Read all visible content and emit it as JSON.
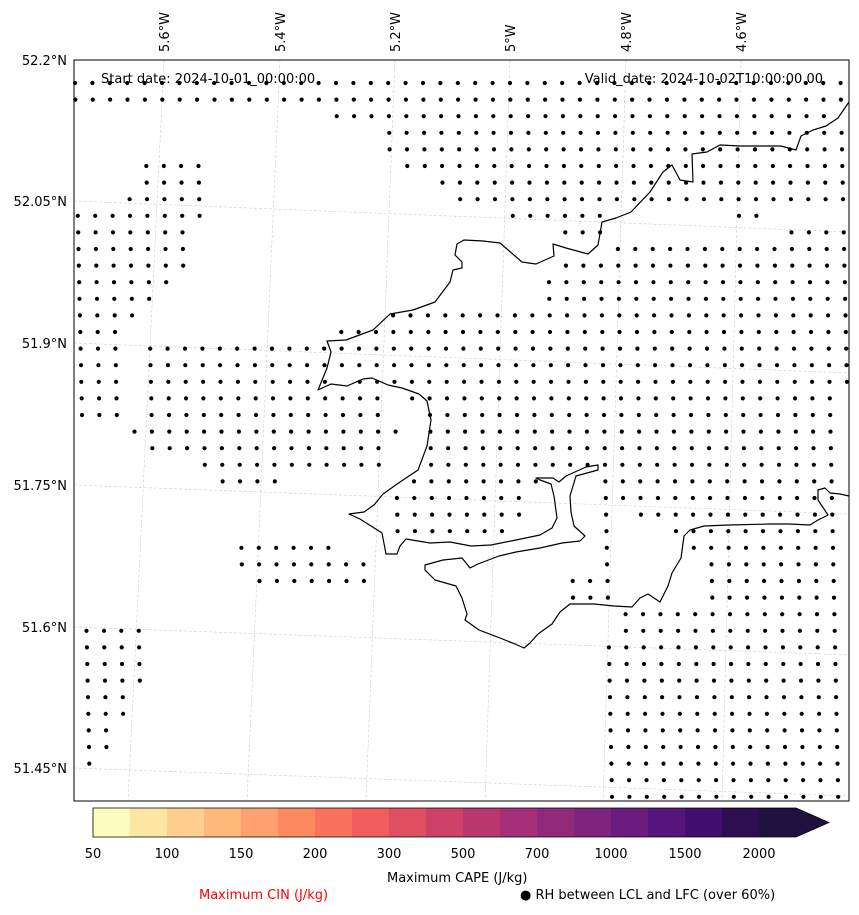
{
  "header": {
    "start_date": "Start date: 2024-10-01_00:00:00",
    "valid_date": "Valid_date: 2024-10-02T10:00:00.00"
  },
  "map": {
    "extent": {
      "lon": [
        -5.75,
        -4.43
      ],
      "lat": [
        51.42,
        52.2
      ]
    },
    "lon_ticks": [
      {
        "value": -5.6,
        "label": "5.6°W"
      },
      {
        "value": -5.4,
        "label": "5.4°W"
      },
      {
        "value": -5.2,
        "label": "5.2°W"
      },
      {
        "value": -5.0,
        "label": "5°W"
      },
      {
        "value": -4.8,
        "label": "4.8°W"
      },
      {
        "value": -4.6,
        "label": "4.6°W"
      }
    ],
    "lat_ticks": [
      {
        "value": 52.2,
        "label": "52.2°N"
      },
      {
        "value": 52.05,
        "label": "52.05°N"
      },
      {
        "value": 51.9,
        "label": "51.9°N"
      },
      {
        "value": 51.75,
        "label": "51.75°N"
      },
      {
        "value": 51.6,
        "label": "51.6°N"
      },
      {
        "value": 51.45,
        "label": "51.45°N"
      }
    ],
    "gridlines": true,
    "stipple_marker": "dot",
    "coastline_color": "#000000"
  },
  "colorbar": {
    "ticks": [
      "50",
      "100",
      "150",
      "200",
      "300",
      "500",
      "700",
      "1000",
      "1500",
      "2000"
    ],
    "colors": [
      "#fdfcc0",
      "#fde6a2",
      "#fecf8e",
      "#feb87b",
      "#fea16e",
      "#fd8a5f",
      "#f8735a",
      "#ef5e5c",
      "#e04e62",
      "#cd4169",
      "#b9376e",
      "#a52f76",
      "#912a79",
      "#7e247d",
      "#6a1d7f",
      "#56147c",
      "#420f70",
      "#2d0f4f",
      "#1f1140"
    ],
    "extend": "max",
    "label": "Maximum CAPE (J/kg)"
  },
  "legend": {
    "cin": "Maximum CIN (J/kg)",
    "cin_color": "#ff0000",
    "rh": "● RH between LCL and LFC (over 60%)"
  }
}
